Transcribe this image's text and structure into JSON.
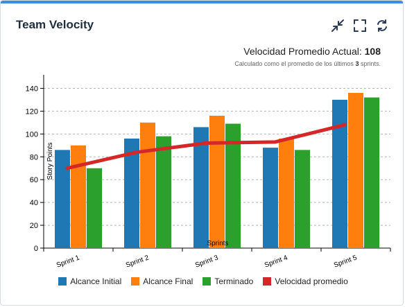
{
  "card": {
    "title": "Team Velocity",
    "icons": [
      "collapse-icon",
      "fullscreen-icon",
      "refresh-icon"
    ]
  },
  "summary": {
    "label": "Velocidad Promedio Actual:",
    "value": "108",
    "note_prefix": "Calculado como el promedio de los últimos",
    "note_count": "3",
    "note_suffix": "sprints."
  },
  "colors": {
    "alcance_inicial": "#1f77b4",
    "alcance_final": "#ff7f0e",
    "terminado": "#2ca02c",
    "velocidad": "#d62728",
    "accent": "#3c8dde"
  },
  "chart_data": {
    "type": "bar",
    "categories": [
      "Sprint 1",
      "Sprint 2",
      "Sprint 3",
      "Sprint 4",
      "Sprint 5"
    ],
    "series": [
      {
        "name": "Alcance Initial",
        "type": "bar",
        "values": [
          86,
          96,
          106,
          88,
          130
        ]
      },
      {
        "name": "Alcance Final",
        "type": "bar",
        "values": [
          90,
          110,
          116,
          96,
          136
        ]
      },
      {
        "name": "Terminado",
        "type": "bar",
        "values": [
          70,
          98,
          109,
          86,
          132
        ]
      },
      {
        "name": "Velocidad promedio",
        "type": "line",
        "values": [
          70,
          84,
          92,
          93,
          108
        ]
      }
    ],
    "xlabel": "Sprints",
    "ylabel": "Story Points",
    "ylim": [
      0,
      150
    ],
    "yticks": [
      0,
      20,
      40,
      60,
      80,
      100,
      120,
      140
    ],
    "grid": true,
    "legend": "bottom"
  }
}
